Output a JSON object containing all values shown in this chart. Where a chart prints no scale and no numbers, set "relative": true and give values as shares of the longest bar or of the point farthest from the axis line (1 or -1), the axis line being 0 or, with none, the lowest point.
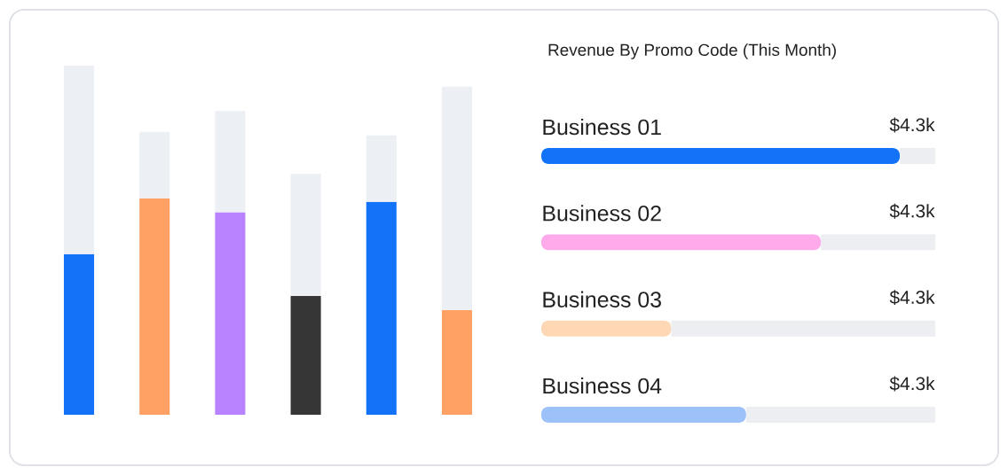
{
  "chart_data": [
    {
      "type": "bar",
      "relative": true,
      "stacked": true,
      "categories": [
        null,
        null,
        null,
        null,
        null,
        null
      ],
      "series": [
        {
          "colors": [
            "#1273f9",
            "#ffa064",
            "#b983ff",
            "#363636",
            "#1273f9",
            "#ffa064"
          ],
          "values": [
            0.46,
            0.62,
            0.58,
            0.34,
            0.61,
            0.3
          ]
        },
        {
          "color": "#eceff3",
          "values": [
            0.54,
            0.19,
            0.29,
            0.35,
            0.19,
            0.64
          ]
        }
      ]
    },
    {
      "type": "bar",
      "relative": true,
      "stacked": true,
      "orientation": "horizontal",
      "title": "Revenue By Promo Code (This Month)",
      "categories": [
        "Business 01",
        "Business 02",
        "Business 03",
        "Business 04"
      ],
      "series": [
        {
          "colors": [
            "#1273f9",
            "#ffaaea",
            "#fed8b4",
            "#9cc2f9"
          ],
          "values": [
            0.91,
            0.71,
            0.33,
            0.52
          ]
        },
        {
          "color": "#eceef2",
          "values": [
            0.09,
            0.29,
            0.67,
            0.48
          ]
        }
      ],
      "annotations": [
        "$4.3k",
        "$4.3k",
        "$4.3k",
        "$4.3k"
      ]
    }
  ]
}
